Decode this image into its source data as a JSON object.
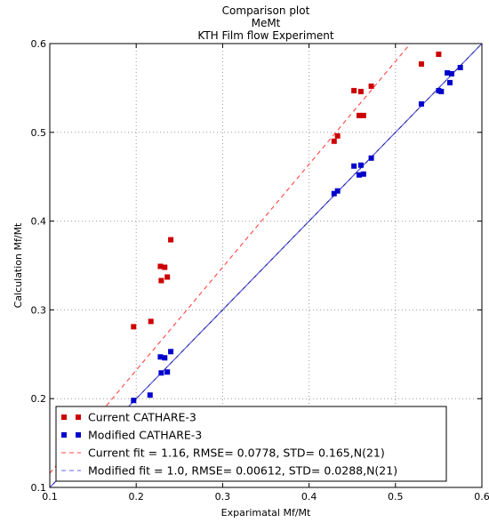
{
  "chart_data": {
    "type": "scatter",
    "title_lines": [
      "Comparison plot",
      "MeMt",
      "KTH Film flow Experiment"
    ],
    "xlabel": "Exparimatal Mf/Mt",
    "ylabel": "Calculation Mf/Mt",
    "xlim": [
      0.1,
      0.6
    ],
    "ylim": [
      0.1,
      0.6
    ],
    "xticks": [
      "0.1",
      "0.2",
      "0.3",
      "0.4",
      "0.5",
      "0.6"
    ],
    "yticks": [
      "0.1",
      "0.2",
      "0.3",
      "0.4",
      "0.5",
      "0.6"
    ],
    "grid": true,
    "legend_position": "lower-right",
    "series": [
      {
        "name": "Current CATHARE-3",
        "kind": "markers",
        "color": "#cc0000",
        "points": [
          [
            0.197,
            0.281
          ],
          [
            0.217,
            0.287
          ],
          [
            0.228,
            0.349
          ],
          [
            0.229,
            0.333
          ],
          [
            0.233,
            0.348
          ],
          [
            0.236,
            0.337
          ],
          [
            0.24,
            0.379
          ],
          [
            0.429,
            0.49
          ],
          [
            0.433,
            0.496
          ],
          [
            0.452,
            0.547
          ],
          [
            0.458,
            0.519
          ],
          [
            0.46,
            0.546
          ],
          [
            0.463,
            0.519
          ],
          [
            0.472,
            0.552
          ],
          [
            0.53,
            0.577
          ],
          [
            0.55,
            0.588
          ]
        ]
      },
      {
        "name": "Modified CATHARE-3",
        "kind": "markers",
        "color": "#0000cc",
        "points": [
          [
            0.197,
            0.198
          ],
          [
            0.216,
            0.204
          ],
          [
            0.228,
            0.247
          ],
          [
            0.229,
            0.229
          ],
          [
            0.233,
            0.246
          ],
          [
            0.236,
            0.23
          ],
          [
            0.24,
            0.253
          ],
          [
            0.429,
            0.431
          ],
          [
            0.433,
            0.434
          ],
          [
            0.452,
            0.462
          ],
          [
            0.458,
            0.452
          ],
          [
            0.46,
            0.463
          ],
          [
            0.463,
            0.453
          ],
          [
            0.472,
            0.471
          ],
          [
            0.53,
            0.532
          ],
          [
            0.55,
            0.547
          ],
          [
            0.553,
            0.546
          ],
          [
            0.56,
            0.567
          ],
          [
            0.563,
            0.556
          ],
          [
            0.565,
            0.566
          ],
          [
            0.575,
            0.573
          ]
        ]
      },
      {
        "name": "Current fit = 1.16, RMSE= 0.0778, STD= 0.165,N(21)",
        "kind": "fit-line",
        "color": "#ff4444",
        "dash": true,
        "slope": 1.16
      },
      {
        "name": "Modified fit = 1.0, RMSE= 0.00612, STD= 0.0288,N(21)",
        "kind": "fit-line",
        "color": "#6666ff",
        "dash": true,
        "slope": 1.0
      }
    ],
    "reference_line": {
      "color": "#1a1a80",
      "slope": 1.0
    }
  }
}
